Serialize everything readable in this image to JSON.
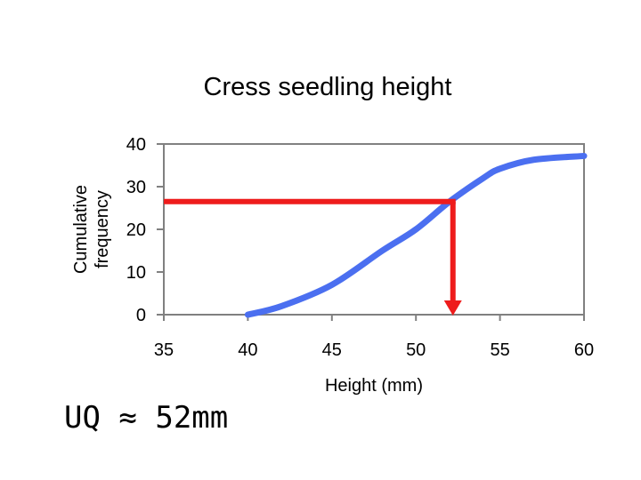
{
  "chart_data": {
    "type": "line",
    "title": "Cress seedling height",
    "xlabel": "Height (mm)",
    "ylabel_lines": [
      "Cumulative",
      "frequency"
    ],
    "xlim": [
      35,
      60
    ],
    "ylim": [
      0,
      40
    ],
    "x_ticks": [
      35,
      40,
      45,
      50,
      55,
      60
    ],
    "y_ticks": [
      0,
      10,
      20,
      30,
      40
    ],
    "grid": false,
    "series": [
      {
        "color": "#4b6ff0",
        "x": [
          40,
          42,
          45,
          48,
          50,
          52,
          54,
          55,
          57,
          60
        ],
        "y": [
          0,
          2,
          7,
          15,
          20,
          26.5,
          32,
          34.2,
          36.3,
          37.2
        ]
      }
    ],
    "annotations": {
      "uq_line": {
        "color": "#ee1c1c",
        "y": 26.5,
        "x_from": 35,
        "x_to": 52.2
      },
      "note": "UQ ≈ 52mm"
    }
  }
}
